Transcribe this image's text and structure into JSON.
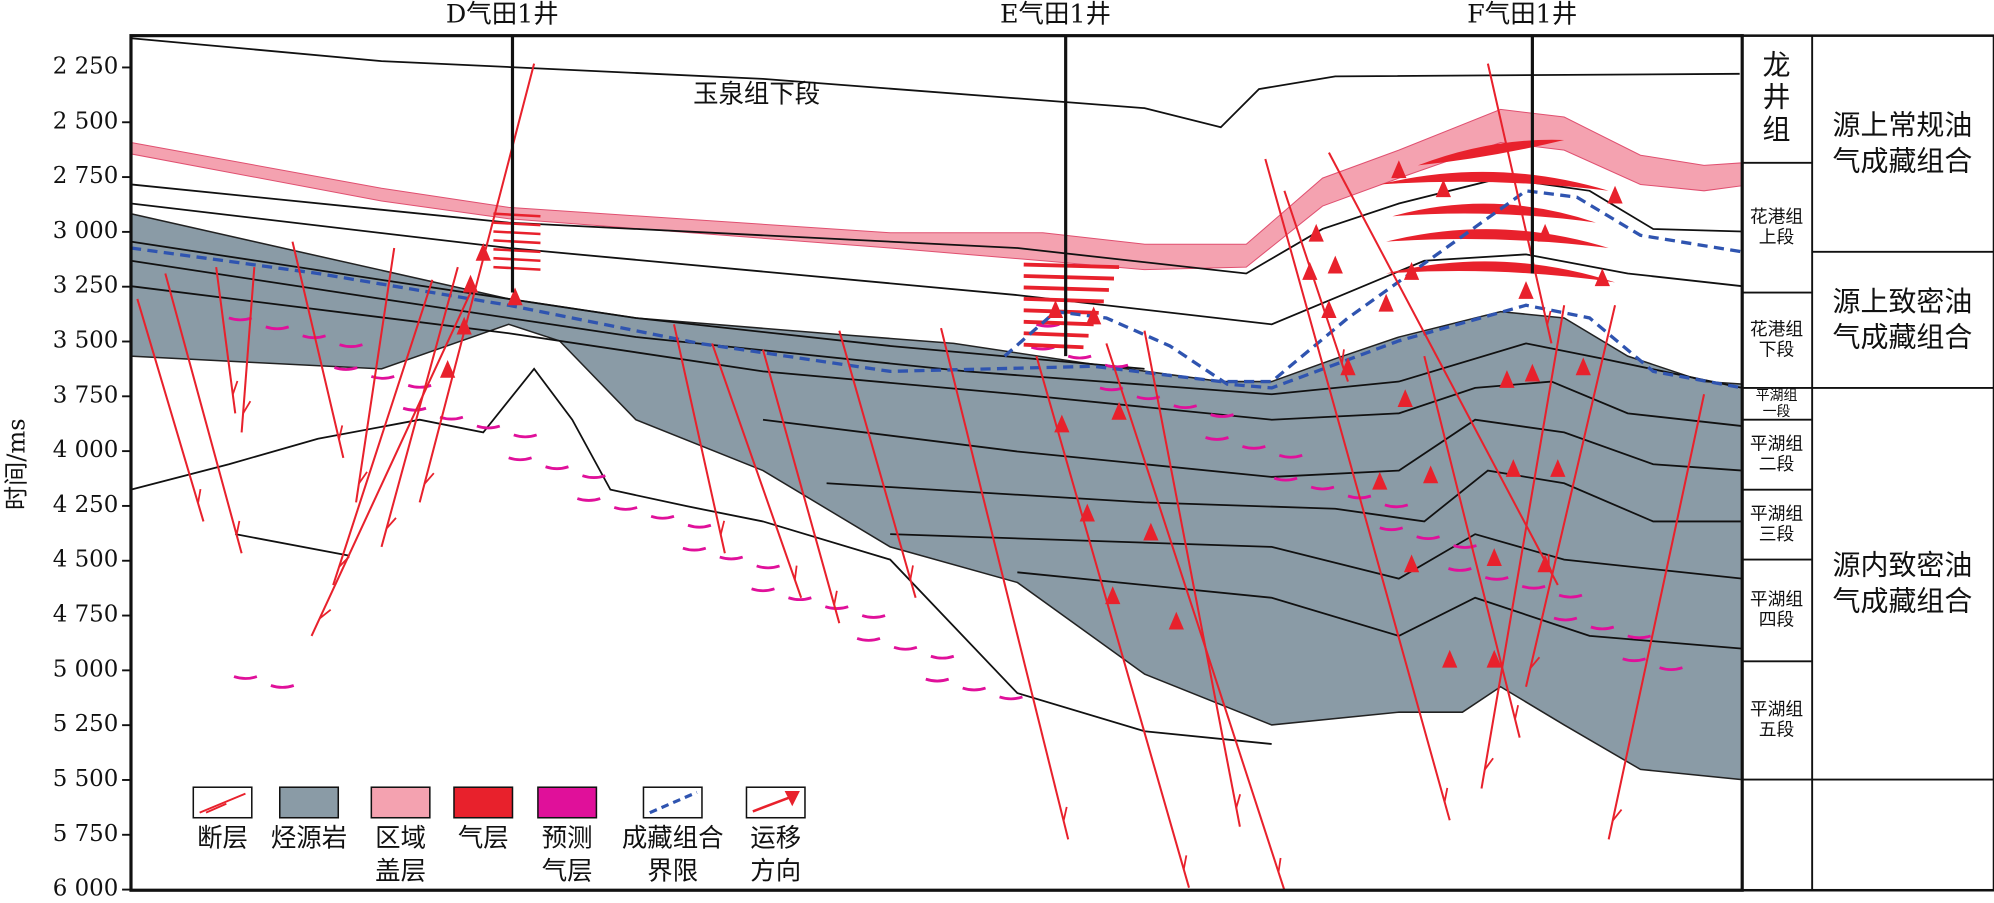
{
  "wells": [
    "D气田1井",
    "E气田1井",
    "F气田1井"
  ],
  "formation_label": "玉泉组下段",
  "y_axis": {
    "label": "时间/ms",
    "ticks": [
      "2 250",
      "2 500",
      "2 750",
      "3 000",
      "3 250",
      "3 500",
      "3 750",
      "4 000",
      "4 250",
      "4 500",
      "4 750",
      "5 000",
      "5 250",
      "5 500",
      "5 750",
      "6 000"
    ]
  },
  "stratigraphy": [
    [
      "龙",
      "井",
      "组"
    ],
    [
      "花港组",
      "上段"
    ],
    [
      "花港组",
      "下段"
    ],
    [
      "平湖组",
      "一段"
    ],
    [
      "平湖组",
      "二段"
    ],
    [
      "平湖组",
      "三段"
    ],
    [
      "平湖组",
      "四段"
    ],
    [
      "平湖组",
      "五段"
    ]
  ],
  "assemblages": [
    [
      "源上常规油",
      "气成藏组合"
    ],
    [
      "源上致密油",
      "气成藏组合"
    ],
    [
      "源内致密油",
      "气成藏组合"
    ]
  ],
  "legend": [
    [
      "断层"
    ],
    [
      "烃源岩"
    ],
    [
      "区域",
      "盖层"
    ],
    [
      "气层"
    ],
    [
      "预测",
      "气层"
    ],
    [
      "成藏组合",
      "界限"
    ],
    [
      "运移",
      "方向"
    ]
  ]
}
